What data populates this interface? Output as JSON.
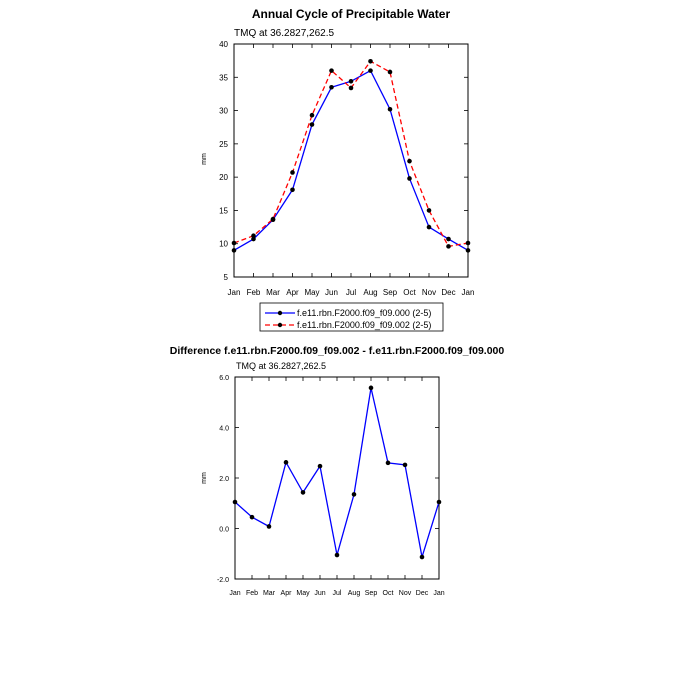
{
  "chart_data": [
    {
      "type": "line",
      "title": "Annual Cycle of Precipitable Water",
      "subtitle": "TMQ at 36.2827,262.5",
      "xlabel": "",
      "ylabel": "mm",
      "ylim": [
        5,
        40
      ],
      "yticks": [
        "5",
        "10",
        "15",
        "20",
        "25",
        "30",
        "35",
        "40"
      ],
      "ytick_values": [
        5,
        10,
        15,
        20,
        25,
        30,
        35,
        40
      ],
      "categories": [
        "Jan",
        "Feb",
        "Mar",
        "Apr",
        "May",
        "Jun",
        "Jul",
        "Aug",
        "Sep",
        "Oct",
        "Nov",
        "Dec",
        "Jan"
      ],
      "grid": false,
      "series": [
        {
          "name": "f.e11.rbn.F2000.f09_f09.000 (2-5)",
          "color": "#0000ff",
          "dash": "solid",
          "values": [
            9.0,
            10.7,
            13.6,
            18.1,
            27.9,
            33.5,
            34.4,
            36.0,
            30.2,
            19.8,
            12.5,
            10.7,
            9.0
          ]
        },
        {
          "name": "f.e11.rbn.F2000.f09_f09.002 (2-5)",
          "color": "#ff0000",
          "dash": "dashed",
          "values": [
            10.1,
            11.2,
            13.7,
            20.7,
            29.3,
            36.0,
            33.4,
            37.4,
            35.8,
            22.4,
            15.0,
            9.6,
            10.1
          ]
        }
      ],
      "legend_position": "below"
    },
    {
      "type": "line",
      "title": "Difference f.e11.rbn.F2000.f09_f09.002 - f.e11.rbn.F2000.f09_f09.000",
      "subtitle": "TMQ at 36.2827,262.5",
      "xlabel": "",
      "ylabel": "mm",
      "ylim": [
        -2,
        6
      ],
      "yticks": [
        "-2.0",
        "0.0",
        "2.0",
        "4.0",
        "6.0"
      ],
      "ytick_values": [
        -2,
        0,
        2,
        4,
        6
      ],
      "categories": [
        "Jan",
        "Feb",
        "Mar",
        "Apr",
        "May",
        "Jun",
        "Jul",
        "Aug",
        "Sep",
        "Oct",
        "Nov",
        "Dec",
        "Jan"
      ],
      "grid": false,
      "series": [
        {
          "name": "Difference",
          "color": "#0000ff",
          "dash": "solid",
          "values": [
            1.05,
            0.45,
            0.08,
            2.62,
            1.43,
            2.47,
            -1.05,
            1.35,
            5.57,
            2.6,
            2.52,
            -1.13,
            1.05
          ]
        }
      ]
    }
  ]
}
